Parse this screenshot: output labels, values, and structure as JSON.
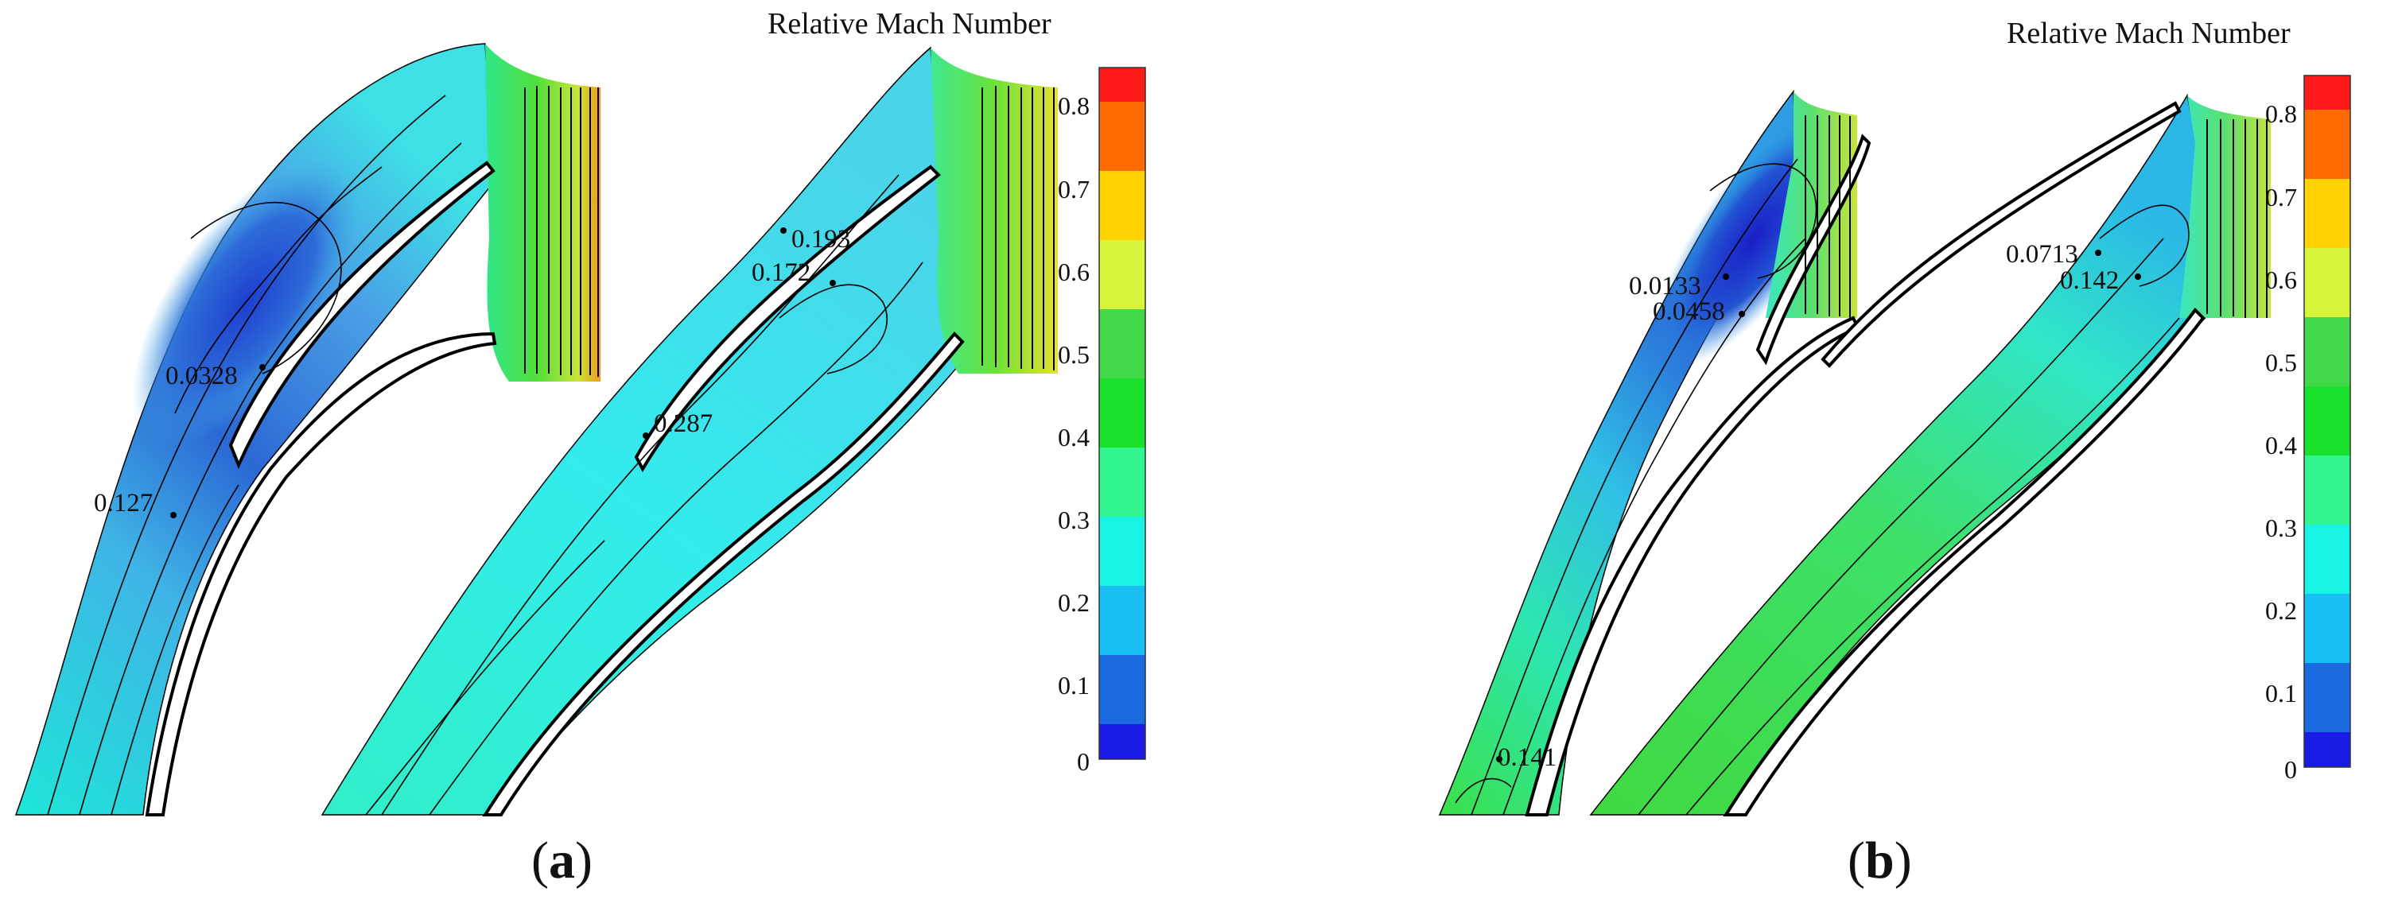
{
  "legend_title": "Relative Mach Number",
  "legend_ticks": [
    "0.8",
    "0.7",
    "0.6",
    "0.5",
    "0.4",
    "0.3",
    "0.2",
    "0.1",
    "0"
  ],
  "legend_colors": [
    "#ff1a1a",
    "#ff6b00",
    "#ffd200",
    "#d9f53b",
    "#42d84a",
    "#19e02a",
    "#32f58f",
    "#19f3e6",
    "#18bff5",
    "#1a6be0",
    "#1a1ae6"
  ],
  "panels": [
    {
      "label": "a",
      "probes": [
        "0.0328",
        "0.127",
        "0.193",
        "0.172",
        "0.287"
      ]
    },
    {
      "label": "b",
      "probes": [
        "0.0133",
        "0.0458",
        "0.141",
        "0.0713",
        "0.142"
      ]
    }
  ]
}
